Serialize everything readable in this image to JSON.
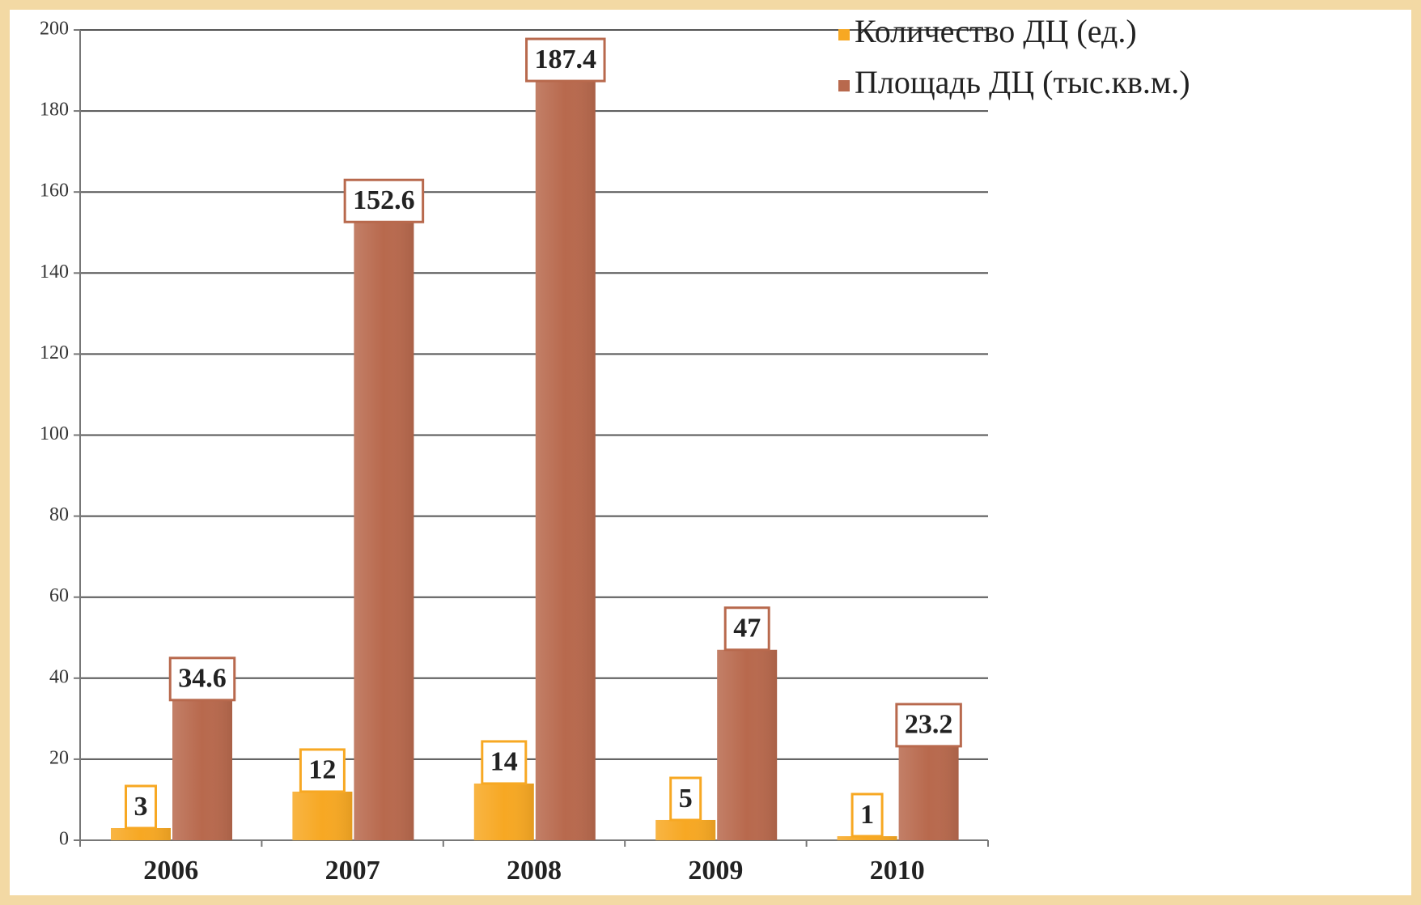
{
  "chart_data": {
    "type": "bar",
    "categories": [
      "2006",
      "2007",
      "2008",
      "2009",
      "2010"
    ],
    "series": [
      {
        "name": "Количество ДЦ (ед.)",
        "color": "#f7a823",
        "values": [
          3,
          12,
          14,
          5,
          1
        ]
      },
      {
        "name": "Площадь ДЦ (тыс.кв.м.)",
        "color": "#b8694d",
        "values": [
          34.6,
          152.6,
          187.4,
          47,
          23.2
        ]
      }
    ],
    "ylim": [
      0,
      200
    ],
    "yticks": [
      0,
      20,
      40,
      60,
      80,
      100,
      120,
      140,
      160,
      180,
      200
    ],
    "grid": true,
    "legend": "top-right"
  }
}
